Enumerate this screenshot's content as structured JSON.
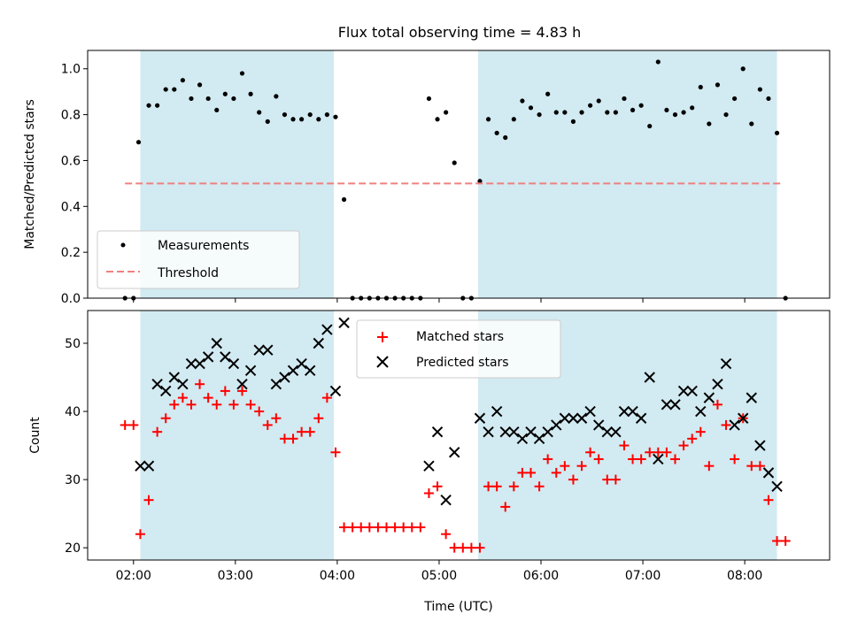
{
  "chart_data": [
    {
      "type": "scatter",
      "title": "Flux total observing time = 4.83 h",
      "ylabel": "Matched/Predicted stars",
      "xlabel": "",
      "xlim": [
        "01:33",
        "08:50"
      ],
      "ylim": [
        0,
        1.08
      ],
      "yticks": [
        "0.0",
        "0.2",
        "0.4",
        "0.6",
        "0.8",
        "1.0"
      ],
      "shaded_intervals": [
        [
          "02:04",
          "03:58"
        ],
        [
          "05:23",
          "08:19"
        ]
      ],
      "shade_color": "#add8e6",
      "legend_placement": "lower-left",
      "series": [
        {
          "name": "Measurements",
          "marker": "dot",
          "color": "#000000",
          "points": [
            [
              "01:55",
              0.0
            ],
            [
              "02:00",
              0.0
            ],
            [
              "02:03",
              0.68
            ],
            [
              "02:09",
              0.84
            ],
            [
              "02:14",
              0.84
            ],
            [
              "02:19",
              0.91
            ],
            [
              "02:24",
              0.91
            ],
            [
              "02:29",
              0.95
            ],
            [
              "02:34",
              0.87
            ],
            [
              "02:39",
              0.93
            ],
            [
              "02:44",
              0.87
            ],
            [
              "02:49",
              0.82
            ],
            [
              "02:54",
              0.89
            ],
            [
              "02:59",
              0.87
            ],
            [
              "03:04",
              0.98
            ],
            [
              "03:09",
              0.89
            ],
            [
              "03:14",
              0.81
            ],
            [
              "03:19",
              0.77
            ],
            [
              "03:24",
              0.88
            ],
            [
              "03:29",
              0.8
            ],
            [
              "03:34",
              0.78
            ],
            [
              "03:39",
              0.78
            ],
            [
              "03:44",
              0.8
            ],
            [
              "03:49",
              0.78
            ],
            [
              "03:54",
              0.8
            ],
            [
              "03:59",
              0.79
            ],
            [
              "04:04",
              0.43
            ],
            [
              "04:09",
              0.0
            ],
            [
              "04:14",
              0.0
            ],
            [
              "04:19",
              0.0
            ],
            [
              "04:24",
              0.0
            ],
            [
              "04:29",
              0.0
            ],
            [
              "04:34",
              0.0
            ],
            [
              "04:39",
              0.0
            ],
            [
              "04:44",
              0.0
            ],
            [
              "04:49",
              0.0
            ],
            [
              "04:54",
              0.87
            ],
            [
              "04:59",
              0.78
            ],
            [
              "05:04",
              0.81
            ],
            [
              "05:09",
              0.59
            ],
            [
              "05:14",
              0.0
            ],
            [
              "05:19",
              0.0
            ],
            [
              "05:24",
              0.51
            ],
            [
              "05:29",
              0.78
            ],
            [
              "05:34",
              0.72
            ],
            [
              "05:39",
              0.7
            ],
            [
              "05:44",
              0.78
            ],
            [
              "05:49",
              0.86
            ],
            [
              "05:54",
              0.83
            ],
            [
              "05:59",
              0.8
            ],
            [
              "06:04",
              0.89
            ],
            [
              "06:09",
              0.81
            ],
            [
              "06:14",
              0.81
            ],
            [
              "06:19",
              0.77
            ],
            [
              "06:24",
              0.81
            ],
            [
              "06:29",
              0.84
            ],
            [
              "06:34",
              0.86
            ],
            [
              "06:39",
              0.81
            ],
            [
              "06:44",
              0.81
            ],
            [
              "06:49",
              0.87
            ],
            [
              "06:54",
              0.82
            ],
            [
              "06:59",
              0.84
            ],
            [
              "07:04",
              0.75
            ],
            [
              "07:09",
              1.03
            ],
            [
              "07:14",
              0.82
            ],
            [
              "07:19",
              0.8
            ],
            [
              "07:24",
              0.81
            ],
            [
              "07:29",
              0.83
            ],
            [
              "07:34",
              0.92
            ],
            [
              "07:39",
              0.76
            ],
            [
              "07:44",
              0.93
            ],
            [
              "07:49",
              0.8
            ],
            [
              "07:54",
              0.87
            ],
            [
              "07:59",
              1.0
            ],
            [
              "08:04",
              0.76
            ],
            [
              "08:09",
              0.91
            ],
            [
              "08:14",
              0.87
            ],
            [
              "08:19",
              0.72
            ],
            [
              "08:24",
              0.0
            ]
          ]
        },
        {
          "name": "Threshold",
          "marker": "dashed-line",
          "color": "#f08080",
          "x_range": [
            "01:55",
            "08:21"
          ],
          "value": 0.5
        }
      ]
    },
    {
      "type": "scatter",
      "title": "",
      "ylabel": "Count",
      "xlabel": "Time (UTC)",
      "xlim": [
        "01:33",
        "08:50"
      ],
      "ylim": [
        18.2,
        54.8
      ],
      "yticks": [
        "20",
        "30",
        "40",
        "50"
      ],
      "xticks": [
        "02:00",
        "03:00",
        "04:00",
        "05:00",
        "06:00",
        "07:00",
        "08:00"
      ],
      "shaded_intervals": [
        [
          "02:04",
          "03:58"
        ],
        [
          "05:23",
          "08:19"
        ]
      ],
      "shade_color": "#add8e6",
      "legend_placement": "top-center",
      "series": [
        {
          "name": "Matched stars",
          "marker": "plus",
          "color": "#ff0000",
          "points": [
            [
              "01:55",
              38
            ],
            [
              "02:00",
              38
            ],
            [
              "02:04",
              22
            ],
            [
              "02:09",
              27
            ],
            [
              "02:14",
              37
            ],
            [
              "02:19",
              39
            ],
            [
              "02:24",
              41
            ],
            [
              "02:29",
              42
            ],
            [
              "02:34",
              41
            ],
            [
              "02:39",
              44
            ],
            [
              "02:44",
              42
            ],
            [
              "02:49",
              41
            ],
            [
              "02:54",
              43
            ],
            [
              "02:59",
              41
            ],
            [
              "03:04",
              43
            ],
            [
              "03:09",
              41
            ],
            [
              "03:14",
              40
            ],
            [
              "03:19",
              38
            ],
            [
              "03:24",
              39
            ],
            [
              "03:29",
              36
            ],
            [
              "03:34",
              36
            ],
            [
              "03:39",
              37
            ],
            [
              "03:44",
              37
            ],
            [
              "03:49",
              39
            ],
            [
              "03:54",
              42
            ],
            [
              "03:59",
              34
            ],
            [
              "04:04",
              23
            ],
            [
              "04:09",
              23
            ],
            [
              "04:14",
              23
            ],
            [
              "04:19",
              23
            ],
            [
              "04:24",
              23
            ],
            [
              "04:29",
              23
            ],
            [
              "04:34",
              23
            ],
            [
              "04:39",
              23
            ],
            [
              "04:44",
              23
            ],
            [
              "04:49",
              23
            ],
            [
              "04:54",
              28
            ],
            [
              "04:59",
              29
            ],
            [
              "05:04",
              22
            ],
            [
              "05:09",
              20
            ],
            [
              "05:14",
              20
            ],
            [
              "05:19",
              20
            ],
            [
              "05:24",
              20
            ],
            [
              "05:29",
              29
            ],
            [
              "05:34",
              29
            ],
            [
              "05:39",
              26
            ],
            [
              "05:44",
              29
            ],
            [
              "05:49",
              31
            ],
            [
              "05:54",
              31
            ],
            [
              "05:59",
              29
            ],
            [
              "06:04",
              33
            ],
            [
              "06:09",
              31
            ],
            [
              "06:14",
              32
            ],
            [
              "06:19",
              30
            ],
            [
              "06:24",
              32
            ],
            [
              "06:29",
              34
            ],
            [
              "06:34",
              33
            ],
            [
              "06:39",
              30
            ],
            [
              "06:44",
              30
            ],
            [
              "06:49",
              35
            ],
            [
              "06:54",
              33
            ],
            [
              "06:59",
              33
            ],
            [
              "07:04",
              34
            ],
            [
              "07:09",
              34
            ],
            [
              "07:14",
              34
            ],
            [
              "07:19",
              33
            ],
            [
              "07:24",
              35
            ],
            [
              "07:29",
              36
            ],
            [
              "07:34",
              37
            ],
            [
              "07:39",
              32
            ],
            [
              "07:44",
              41
            ],
            [
              "07:49",
              38
            ],
            [
              "07:54",
              33
            ],
            [
              "07:59",
              39
            ],
            [
              "08:04",
              32
            ],
            [
              "08:09",
              32
            ],
            [
              "08:14",
              27
            ],
            [
              "08:19",
              21
            ],
            [
              "08:24",
              21
            ]
          ]
        },
        {
          "name": "Predicted stars",
          "marker": "x",
          "color": "#000000",
          "points": [
            [
              "02:04",
              32
            ],
            [
              "02:09",
              32
            ],
            [
              "02:14",
              44
            ],
            [
              "02:19",
              43
            ],
            [
              "02:24",
              45
            ],
            [
              "02:29",
              44
            ],
            [
              "02:34",
              47
            ],
            [
              "02:39",
              47
            ],
            [
              "02:44",
              48
            ],
            [
              "02:49",
              50
            ],
            [
              "02:54",
              48
            ],
            [
              "02:59",
              47
            ],
            [
              "03:04",
              44
            ],
            [
              "03:09",
              46
            ],
            [
              "03:14",
              49
            ],
            [
              "03:19",
              49
            ],
            [
              "03:24",
              44
            ],
            [
              "03:29",
              45
            ],
            [
              "03:34",
              46
            ],
            [
              "03:39",
              47
            ],
            [
              "03:44",
              46
            ],
            [
              "03:49",
              50
            ],
            [
              "03:54",
              52
            ],
            [
              "03:59",
              43
            ],
            [
              "04:04",
              53
            ],
            [
              "04:54",
              32
            ],
            [
              "04:59",
              37
            ],
            [
              "05:04",
              27
            ],
            [
              "05:09",
              34
            ],
            [
              "05:24",
              39
            ],
            [
              "05:29",
              37
            ],
            [
              "05:34",
              40
            ],
            [
              "05:39",
              37
            ],
            [
              "05:44",
              37
            ],
            [
              "05:49",
              36
            ],
            [
              "05:54",
              37
            ],
            [
              "05:59",
              36
            ],
            [
              "06:04",
              37
            ],
            [
              "06:09",
              38
            ],
            [
              "06:14",
              39
            ],
            [
              "06:19",
              39
            ],
            [
              "06:24",
              39
            ],
            [
              "06:29",
              40
            ],
            [
              "06:34",
              38
            ],
            [
              "06:39",
              37
            ],
            [
              "06:44",
              37
            ],
            [
              "06:49",
              40
            ],
            [
              "06:54",
              40
            ],
            [
              "06:59",
              39
            ],
            [
              "07:04",
              45
            ],
            [
              "07:09",
              33
            ],
            [
              "07:14",
              41
            ],
            [
              "07:19",
              41
            ],
            [
              "07:24",
              43
            ],
            [
              "07:29",
              43
            ],
            [
              "07:34",
              40
            ],
            [
              "07:39",
              42
            ],
            [
              "07:44",
              44
            ],
            [
              "07:49",
              47
            ],
            [
              "07:54",
              38
            ],
            [
              "07:59",
              39
            ],
            [
              "08:04",
              42
            ],
            [
              "08:09",
              35
            ],
            [
              "08:14",
              31
            ],
            [
              "08:19",
              29
            ]
          ]
        }
      ]
    }
  ]
}
